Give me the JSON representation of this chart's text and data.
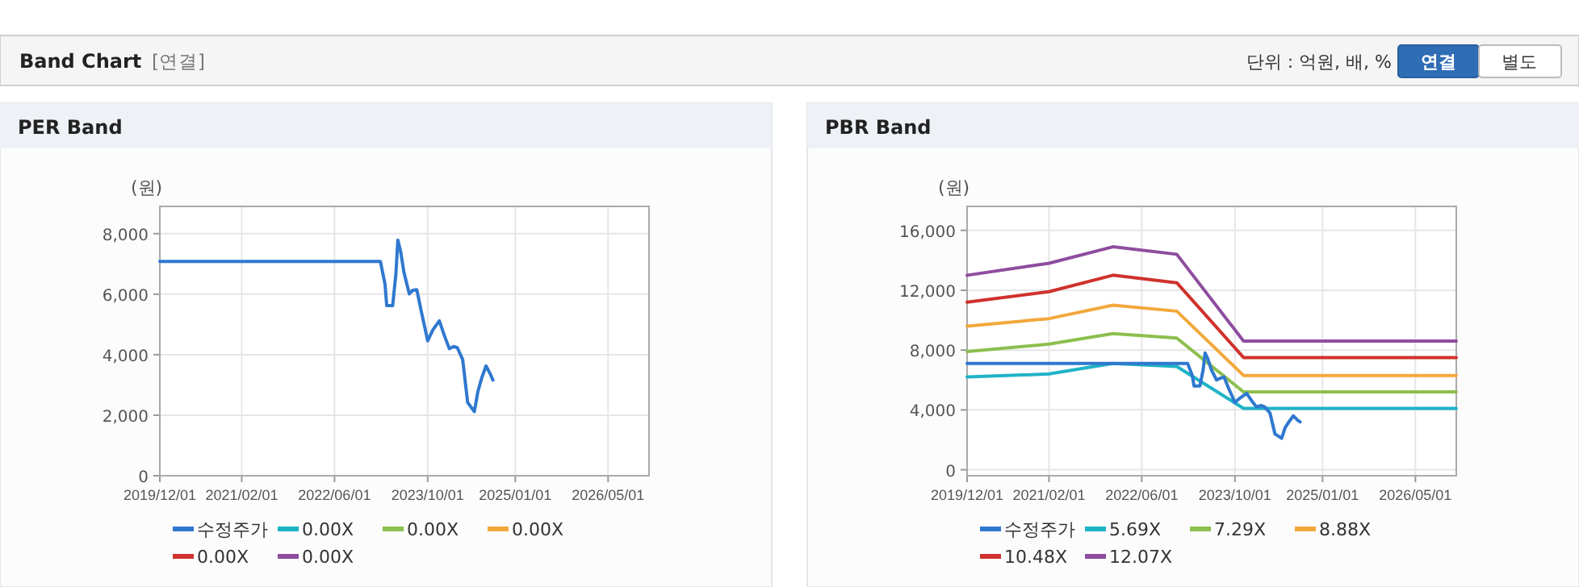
{
  "chart_data": [
    {
      "type": "other",
      "title": "Band Chart",
      "annotations": [
        "[연결]",
        "단위 : 억원, 배, %",
        "연결",
        "별도"
      ]
    },
    {
      "type": "line",
      "title": "PER Band",
      "ylabel": "(원)",
      "grid": true,
      "legend": "bottom",
      "marker": "none",
      "line_style": "solid",
      "xlim": [
        "2019-12-01",
        "2026-12-01"
      ],
      "ylim": [
        0,
        8900
      ],
      "xticks": [
        {
          "value": "2019-12-01",
          "label": "2019/12/01"
        },
        {
          "value": "2021-02-01",
          "label": "2021/02/01"
        },
        {
          "value": "2022-06-01",
          "label": "2022/06/01"
        },
        {
          "value": "2023-10-01",
          "label": "2023/10/01"
        },
        {
          "value": "2025-01-01",
          "label": "2025/01/01"
        },
        {
          "value": "2026-05-01",
          "label": "2026/05/01"
        }
      ],
      "yticks": [
        0,
        {
          "value": 2000,
          "label": "2,000"
        },
        {
          "value": 4000,
          "label": "4,000"
        },
        {
          "value": 6000,
          "label": "6,000"
        },
        {
          "value": 8000,
          "label": "8,000"
        }
      ],
      "series": [
        {
          "name": "수정주가",
          "color": "#2f78d0",
          "x": [
            "2019-12-01",
            "2023-01-27",
            "2023-02-20",
            "2023-03-01",
            "2023-04-01",
            "2023-04-18",
            "2023-04-28",
            "2023-05-13",
            "2023-05-30",
            "2023-06-27",
            "2023-07-13",
            "2023-08-05",
            "2023-08-27",
            "2023-10-01",
            "2023-10-28",
            "2023-12-01",
            "2023-12-28",
            "2024-01-22",
            "2024-02-14",
            "2024-03-04",
            "2024-04-01",
            "2024-04-27",
            "2024-06-01",
            "2024-06-19",
            "2024-07-09",
            "2024-08-01",
            "2024-08-25",
            "2024-09-06"
          ],
          "values": [
            7080,
            7080,
            6330,
            5620,
            5620,
            6680,
            7790,
            7400,
            6720,
            6010,
            6120,
            6150,
            5480,
            4460,
            4820,
            5120,
            4620,
            4200,
            4270,
            4230,
            3840,
            2420,
            2120,
            2770,
            3220,
            3630,
            3340,
            3160
          ]
        },
        {
          "name": "0.00X",
          "color": "#1fb3c6"
        },
        {
          "name": "0.00X",
          "color": "#8cbf4f"
        },
        {
          "name": "0.00X",
          "color": "#f2a83b"
        },
        {
          "name": "0.00X",
          "color": "#d0322d"
        },
        {
          "name": "0.00X",
          "color": "#8e4d9e"
        }
      ]
    },
    {
      "type": "line",
      "title": "PBR Band",
      "ylabel": "(원)",
      "grid": true,
      "legend": "bottom",
      "marker": "none",
      "line_style": "solid",
      "xlim": [
        "2019-12-01",
        "2026-12-01"
      ],
      "ylim": [
        -400,
        17600
      ],
      "xticks": [
        {
          "value": "2019-12-01",
          "label": "2019/12/01"
        },
        {
          "value": "2021-02-01",
          "label": "2021/02/01"
        },
        {
          "value": "2022-06-01",
          "label": "2022/06/01"
        },
        {
          "value": "2023-10-01",
          "label": "2023/10/01"
        },
        {
          "value": "2025-01-01",
          "label": "2025/01/01"
        },
        {
          "value": "2026-05-01",
          "label": "2026/05/01"
        }
      ],
      "yticks": [
        0,
        {
          "value": 4000,
          "label": "4,000"
        },
        {
          "value": 8000,
          "label": "8,000"
        },
        {
          "value": 12000,
          "label": "12,000"
        },
        {
          "value": 16000,
          "label": "16,000"
        }
      ],
      "series": [
        {
          "name": "수정주가",
          "color": "#2f78d0",
          "x": [
            "2019-12-01",
            "2023-01-27",
            "2023-02-20",
            "2023-03-01",
            "2023-04-01",
            "2023-04-18",
            "2023-04-28",
            "2023-05-13",
            "2023-05-30",
            "2023-06-27",
            "2023-07-13",
            "2023-08-05",
            "2023-08-27",
            "2023-10-01",
            "2023-10-28",
            "2023-12-01",
            "2023-12-28",
            "2024-01-22",
            "2024-02-14",
            "2024-03-04",
            "2024-04-01",
            "2024-04-27",
            "2024-06-01",
            "2024-06-19",
            "2024-07-09",
            "2024-08-01",
            "2024-08-25",
            "2024-09-06"
          ],
          "values": [
            7100,
            7100,
            6300,
            5600,
            5600,
            6700,
            7800,
            7400,
            6700,
            6000,
            6100,
            6200,
            5500,
            4500,
            4800,
            5100,
            4600,
            4200,
            4300,
            4200,
            3800,
            2400,
            2100,
            2800,
            3200,
            3600,
            3300,
            3200
          ]
        },
        {
          "name": "5.69X",
          "color": "#1fb3c6",
          "x": [
            "2019-12-01",
            "2021-02-01",
            "2022-01-01",
            "2022-12-01",
            "2023-11-15",
            "2026-12-01"
          ],
          "values": [
            6200,
            6400,
            7100,
            6900,
            4100,
            4100
          ]
        },
        {
          "name": "7.29X",
          "color": "#8cbf4f",
          "x": [
            "2019-12-01",
            "2021-02-01",
            "2022-01-01",
            "2022-12-01",
            "2023-11-15",
            "2026-12-01"
          ],
          "values": [
            7900,
            8400,
            9100,
            8800,
            5200,
            5200
          ]
        },
        {
          "name": "8.88X",
          "color": "#f2a83b",
          "x": [
            "2019-12-01",
            "2021-02-01",
            "2022-01-01",
            "2022-12-01",
            "2023-11-15",
            "2026-12-01"
          ],
          "values": [
            9600,
            10100,
            11000,
            10600,
            6300,
            6300
          ]
        },
        {
          "name": "10.48X",
          "color": "#d0322d",
          "x": [
            "2019-12-01",
            "2021-02-01",
            "2022-01-01",
            "2022-12-01",
            "2023-11-15",
            "2026-12-01"
          ],
          "values": [
            11200,
            11900,
            13000,
            12500,
            7500,
            7500
          ]
        },
        {
          "name": "12.07X",
          "color": "#8e4d9e",
          "x": [
            "2019-12-01",
            "2021-02-01",
            "2022-01-01",
            "2022-12-01",
            "2023-11-15",
            "2026-12-01"
          ],
          "values": [
            13000,
            13800,
            14900,
            14400,
            8600,
            8600
          ]
        }
      ]
    }
  ]
}
